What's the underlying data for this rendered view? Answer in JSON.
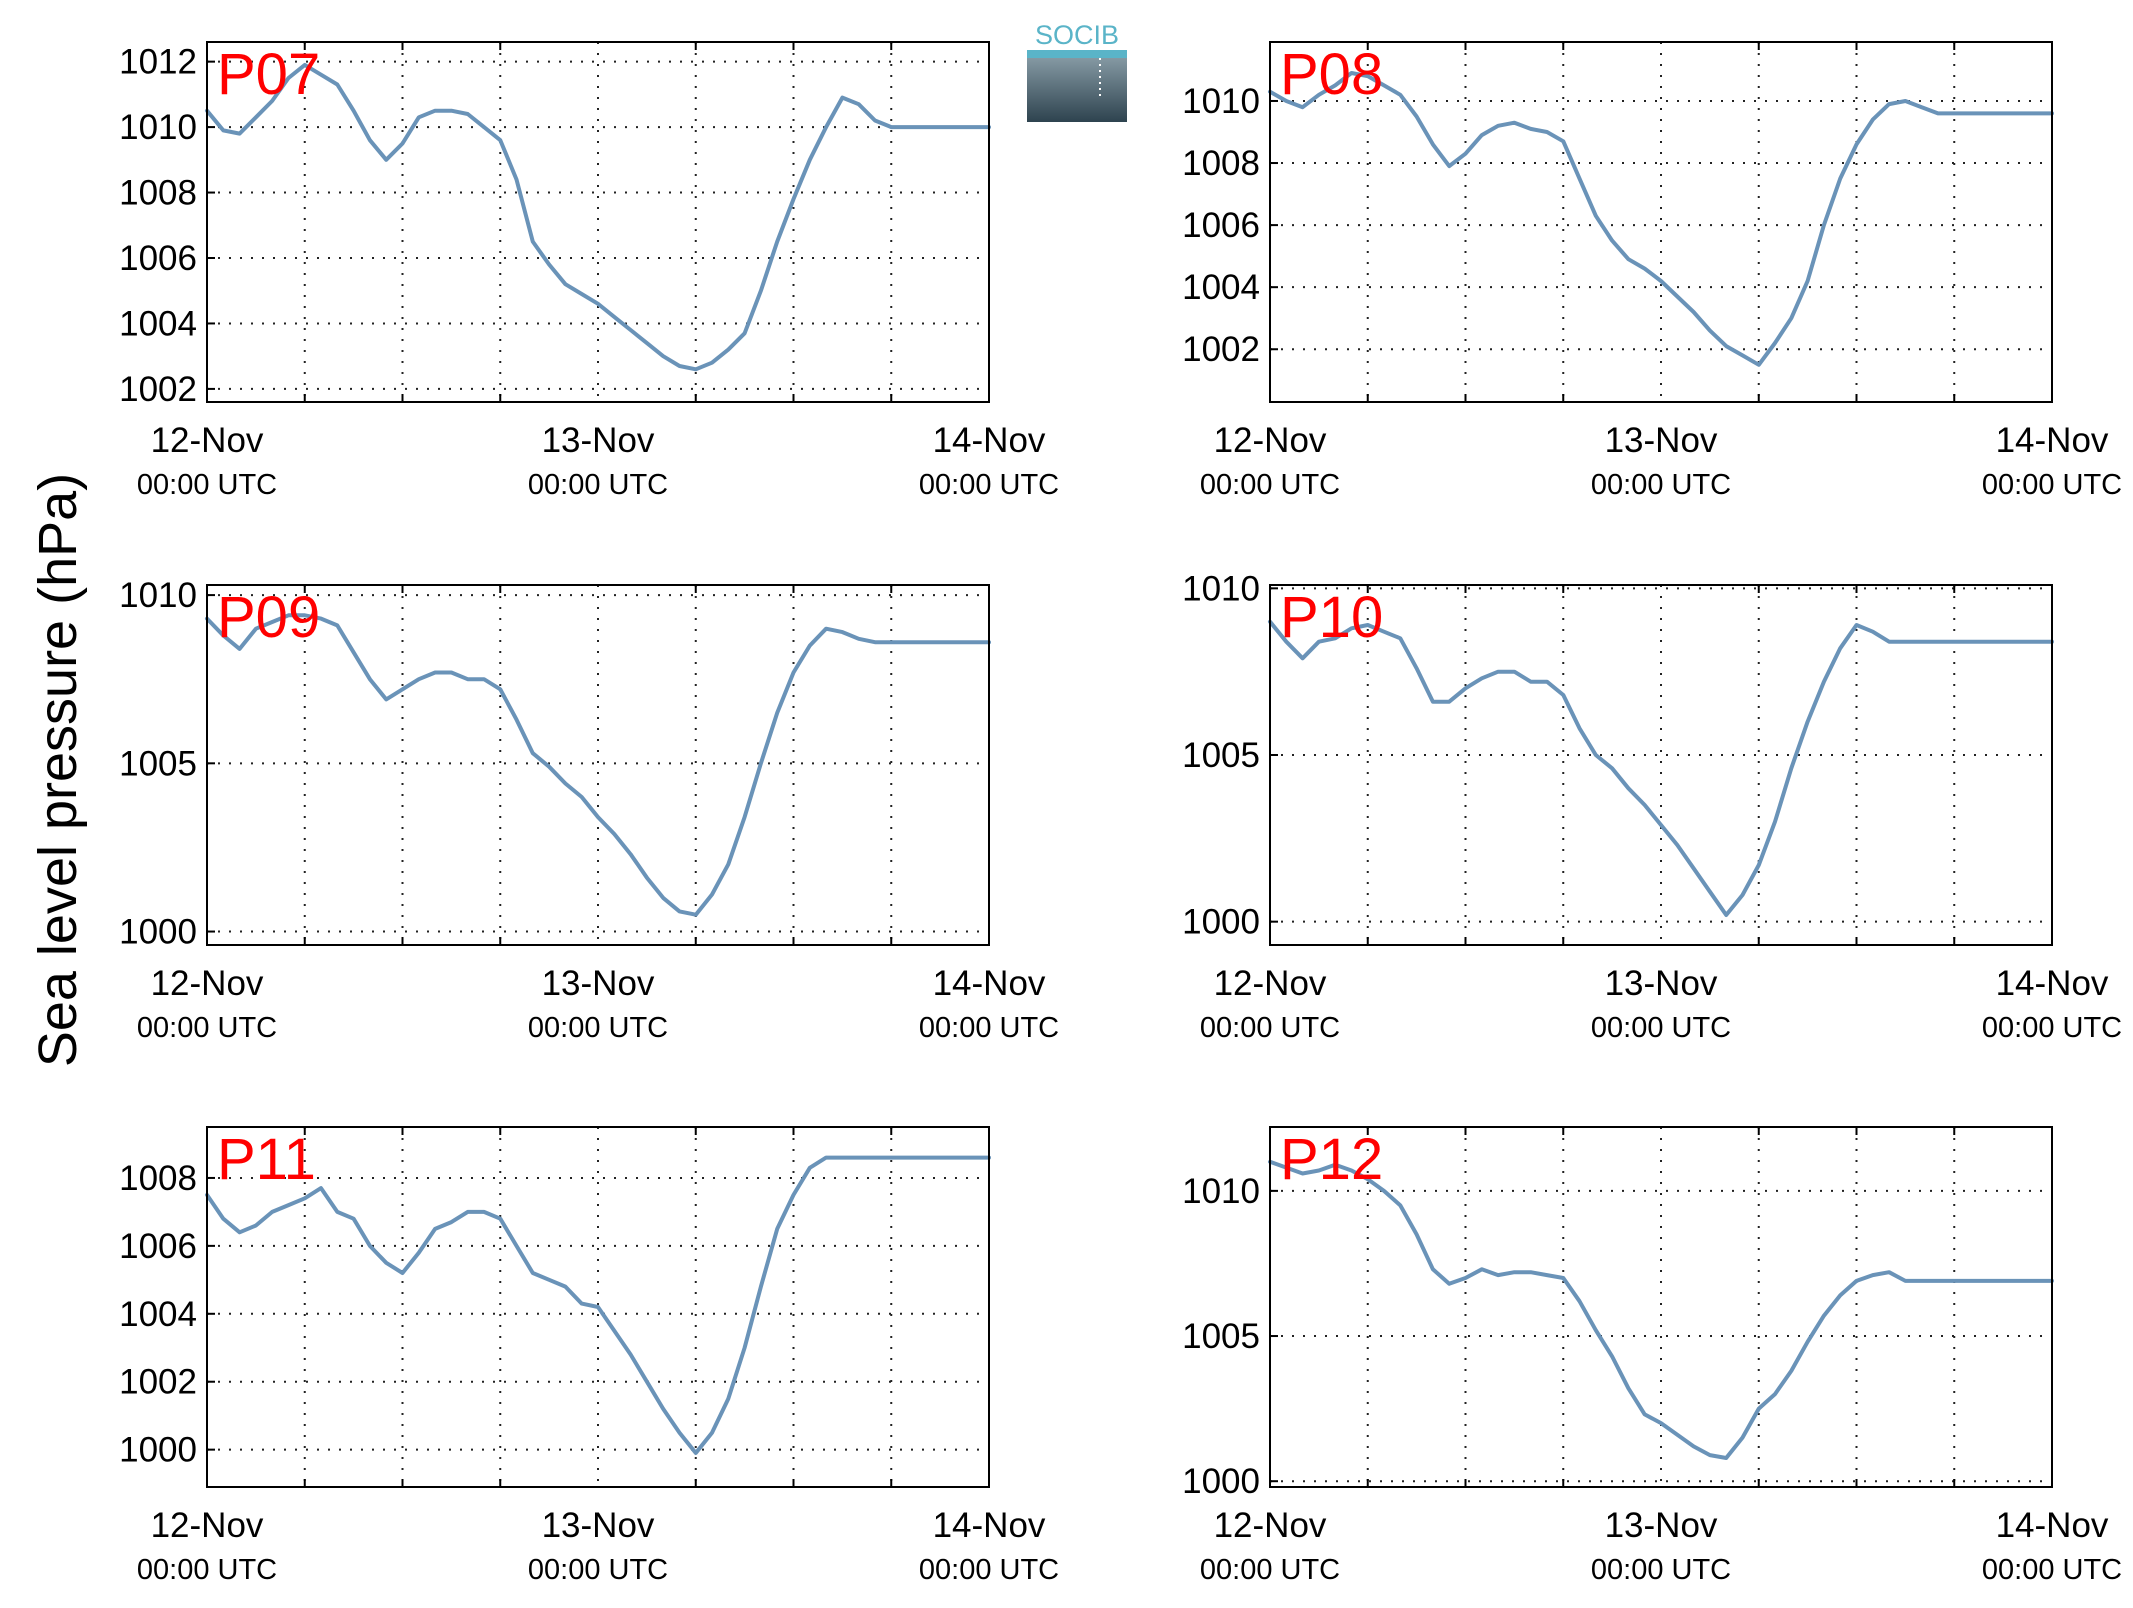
{
  "figure": {
    "ylabel": "Sea level pressure (hPa)",
    "logo_text": "SOCIB",
    "line_color": "#6a93b8",
    "label_color": "#ff0000"
  },
  "chart_data": [
    {
      "type": "line",
      "station": "P07",
      "x_ticks": [
        {
          "hour": 0,
          "date": "12-Nov",
          "time": "00:00 UTC"
        },
        {
          "hour": 24,
          "date": "13-Nov",
          "time": "00:00 UTC"
        },
        {
          "hour": 48,
          "date": "14-Nov",
          "time": "00:00 UTC"
        }
      ],
      "x_minor_hours": [
        6,
        12,
        18,
        30,
        36,
        42
      ],
      "xlim": [
        0,
        48
      ],
      "ylim": [
        1001.6,
        1012.6
      ],
      "yticks": [
        1002,
        1004,
        1006,
        1008,
        1010,
        1012
      ],
      "grid": true,
      "series": [
        {
          "x": [
            0,
            1,
            2,
            3,
            4,
            5,
            6,
            7,
            8,
            9,
            10,
            11,
            12,
            13,
            14,
            15,
            16,
            17,
            18,
            19,
            20,
            21,
            22,
            23,
            24,
            25,
            26,
            27,
            28,
            29,
            30,
            31,
            32,
            33,
            34,
            35,
            36,
            37,
            38,
            39,
            40,
            41,
            42,
            43,
            44,
            45,
            46,
            47,
            48
          ],
          "y": [
            1010.5,
            1009.9,
            1009.8,
            1010.3,
            1010.8,
            1011.5,
            1011.9,
            1011.6,
            1011.3,
            1010.5,
            1009.6,
            1009.0,
            1009.5,
            1010.3,
            1010.5,
            1010.5,
            1010.4,
            1010.0,
            1009.6,
            1008.4,
            1006.5,
            1005.8,
            1005.2,
            1004.9,
            1004.6,
            1004.2,
            1003.8,
            1003.4,
            1003.0,
            1002.7,
            1002.6,
            1002.8,
            1003.2,
            1003.7,
            1005.0,
            1006.5,
            1007.8,
            1009.0,
            1010.0,
            1010.9,
            1010.7,
            1010.2,
            1010.0,
            1010.0,
            1010.0,
            1010.0,
            1010.0,
            1010.0,
            1010.0
          ]
        }
      ]
    },
    {
      "type": "line",
      "station": "P08",
      "x_ticks": [
        {
          "hour": 0,
          "date": "12-Nov",
          "time": "00:00 UTC"
        },
        {
          "hour": 24,
          "date": "13-Nov",
          "time": "00:00 UTC"
        },
        {
          "hour": 48,
          "date": "14-Nov",
          "time": "00:00 UTC"
        }
      ],
      "x_minor_hours": [
        6,
        12,
        18,
        30,
        36,
        42
      ],
      "xlim": [
        0,
        48
      ],
      "ylim": [
        1000.3,
        1011.9
      ],
      "yticks": [
        1002,
        1004,
        1006,
        1008,
        1010
      ],
      "grid": true,
      "series": [
        {
          "x": [
            0,
            1,
            2,
            3,
            4,
            5,
            6,
            7,
            8,
            9,
            10,
            11,
            12,
            13,
            14,
            15,
            16,
            17,
            18,
            19,
            20,
            21,
            22,
            23,
            24,
            25,
            26,
            27,
            28,
            29,
            30,
            31,
            32,
            33,
            34,
            35,
            36,
            37,
            38,
            39,
            40,
            41,
            42,
            43,
            44,
            45,
            46,
            47,
            48
          ],
          "y": [
            1010.3,
            1010.0,
            1009.8,
            1010.2,
            1010.5,
            1010.9,
            1010.8,
            1010.5,
            1010.2,
            1009.5,
            1008.6,
            1007.9,
            1008.3,
            1008.9,
            1009.2,
            1009.3,
            1009.1,
            1009.0,
            1008.7,
            1007.5,
            1006.3,
            1005.5,
            1004.9,
            1004.6,
            1004.2,
            1003.7,
            1003.2,
            1002.6,
            1002.1,
            1001.8,
            1001.5,
            1002.2,
            1003.0,
            1004.2,
            1006.0,
            1007.5,
            1008.6,
            1009.4,
            1009.9,
            1010.0,
            1009.8,
            1009.6,
            1009.6,
            1009.6,
            1009.6,
            1009.6,
            1009.6,
            1009.6,
            1009.6
          ]
        }
      ]
    },
    {
      "type": "line",
      "station": "P09",
      "x_ticks": [
        {
          "hour": 0,
          "date": "12-Nov",
          "time": "00:00 UTC"
        },
        {
          "hour": 24,
          "date": "13-Nov",
          "time": "00:00 UTC"
        },
        {
          "hour": 48,
          "date": "14-Nov",
          "time": "00:00 UTC"
        }
      ],
      "x_minor_hours": [
        6,
        12,
        18,
        30,
        36,
        42
      ],
      "xlim": [
        0,
        48
      ],
      "ylim": [
        999.6,
        1010.3
      ],
      "yticks": [
        1000,
        1005,
        1010
      ],
      "grid": true,
      "series": [
        {
          "x": [
            0,
            1,
            2,
            3,
            4,
            5,
            6,
            7,
            8,
            9,
            10,
            11,
            12,
            13,
            14,
            15,
            16,
            17,
            18,
            19,
            20,
            21,
            22,
            23,
            24,
            25,
            26,
            27,
            28,
            29,
            30,
            31,
            32,
            33,
            34,
            35,
            36,
            37,
            38,
            39,
            40,
            41,
            42,
            43,
            44,
            45,
            46,
            47,
            48
          ],
          "y": [
            1009.3,
            1008.8,
            1008.4,
            1009.0,
            1009.2,
            1009.4,
            1009.4,
            1009.3,
            1009.1,
            1008.3,
            1007.5,
            1006.9,
            1007.2,
            1007.5,
            1007.7,
            1007.7,
            1007.5,
            1007.5,
            1007.2,
            1006.3,
            1005.3,
            1004.9,
            1004.4,
            1004.0,
            1003.4,
            1002.9,
            1002.3,
            1001.6,
            1001.0,
            1000.6,
            1000.5,
            1001.1,
            1002.0,
            1003.4,
            1005.0,
            1006.5,
            1007.7,
            1008.5,
            1009.0,
            1008.9,
            1008.7,
            1008.6,
            1008.6,
            1008.6,
            1008.6,
            1008.6,
            1008.6,
            1008.6,
            1008.6
          ]
        }
      ]
    },
    {
      "type": "line",
      "station": "P10",
      "x_ticks": [
        {
          "hour": 0,
          "date": "12-Nov",
          "time": "00:00 UTC"
        },
        {
          "hour": 24,
          "date": "13-Nov",
          "time": "00:00 UTC"
        },
        {
          "hour": 48,
          "date": "14-Nov",
          "time": "00:00 UTC"
        }
      ],
      "x_minor_hours": [
        6,
        12,
        18,
        30,
        36,
        42
      ],
      "xlim": [
        0,
        48
      ],
      "ylim": [
        999.3,
        1010.1
      ],
      "yticks": [
        1000,
        1005,
        1010
      ],
      "grid": true,
      "series": [
        {
          "x": [
            0,
            1,
            2,
            3,
            4,
            5,
            6,
            7,
            8,
            9,
            10,
            11,
            12,
            13,
            14,
            15,
            16,
            17,
            18,
            19,
            20,
            21,
            22,
            23,
            24,
            25,
            26,
            27,
            28,
            29,
            30,
            31,
            32,
            33,
            34,
            35,
            36,
            37,
            38,
            39,
            40,
            41,
            42,
            43,
            44,
            45,
            46,
            47,
            48
          ],
          "y": [
            1009.0,
            1008.4,
            1007.9,
            1008.4,
            1008.5,
            1008.8,
            1008.9,
            1008.7,
            1008.5,
            1007.6,
            1006.6,
            1006.6,
            1007.0,
            1007.3,
            1007.5,
            1007.5,
            1007.2,
            1007.2,
            1006.8,
            1005.8,
            1005.0,
            1004.6,
            1004.0,
            1003.5,
            1002.9,
            1002.3,
            1001.6,
            1000.9,
            1000.2,
            1000.8,
            1001.7,
            1003.0,
            1004.6,
            1006.0,
            1007.2,
            1008.2,
            1008.9,
            1008.7,
            1008.4,
            1008.4,
            1008.4,
            1008.4,
            1008.4,
            1008.4,
            1008.4,
            1008.4,
            1008.4,
            1008.4,
            1008.4
          ]
        }
      ]
    },
    {
      "type": "line",
      "station": "P11",
      "x_ticks": [
        {
          "hour": 0,
          "date": "12-Nov",
          "time": "00:00 UTC"
        },
        {
          "hour": 24,
          "date": "13-Nov",
          "time": "00:00 UTC"
        },
        {
          "hour": 48,
          "date": "14-Nov",
          "time": "00:00 UTC"
        }
      ],
      "x_minor_hours": [
        6,
        12,
        18,
        30,
        36,
        42
      ],
      "xlim": [
        0,
        48
      ],
      "ylim": [
        998.9,
        1009.5
      ],
      "yticks": [
        1000,
        1002,
        1004,
        1006,
        1008
      ],
      "grid": true,
      "series": [
        {
          "x": [
            0,
            1,
            2,
            3,
            4,
            5,
            6,
            7,
            8,
            9,
            10,
            11,
            12,
            13,
            14,
            15,
            16,
            17,
            18,
            19,
            20,
            21,
            22,
            23,
            24,
            25,
            26,
            27,
            28,
            29,
            30,
            31,
            32,
            33,
            34,
            35,
            36,
            37,
            38,
            39,
            40,
            41,
            42,
            43,
            44,
            45,
            46,
            47,
            48
          ],
          "y": [
            1007.5,
            1006.8,
            1006.4,
            1006.6,
            1007.0,
            1007.2,
            1007.4,
            1007.7,
            1007.0,
            1006.8,
            1006.0,
            1005.5,
            1005.2,
            1005.8,
            1006.5,
            1006.7,
            1007.0,
            1007.0,
            1006.8,
            1006.0,
            1005.2,
            1005.0,
            1004.8,
            1004.3,
            1004.2,
            1003.5,
            1002.8,
            1002.0,
            1001.2,
            1000.5,
            999.9,
            1000.5,
            1001.5,
            1003.0,
            1004.8,
            1006.5,
            1007.5,
            1008.3,
            1008.6,
            1008.6,
            1008.6,
            1008.6,
            1008.6,
            1008.6,
            1008.6,
            1008.6,
            1008.6,
            1008.6,
            1008.6
          ]
        }
      ]
    },
    {
      "type": "line",
      "station": "P12",
      "x_ticks": [
        {
          "hour": 0,
          "date": "12-Nov",
          "time": "00:00 UTC"
        },
        {
          "hour": 24,
          "date": "13-Nov",
          "time": "00:00 UTC"
        },
        {
          "hour": 48,
          "date": "14-Nov",
          "time": "00:00 UTC"
        }
      ],
      "x_minor_hours": [
        6,
        12,
        18,
        30,
        36,
        42
      ],
      "xlim": [
        0,
        48
      ],
      "ylim": [
        999.8,
        1012.2
      ],
      "yticks": [
        1000,
        1005,
        1010
      ],
      "grid": true,
      "series": [
        {
          "x": [
            0,
            1,
            2,
            3,
            4,
            5,
            6,
            7,
            8,
            9,
            10,
            11,
            12,
            13,
            14,
            15,
            16,
            17,
            18,
            19,
            20,
            21,
            22,
            23,
            24,
            25,
            26,
            27,
            28,
            29,
            30,
            31,
            32,
            33,
            34,
            35,
            36,
            37,
            38,
            39,
            40,
            41,
            42,
            43,
            44,
            45,
            46,
            47,
            48
          ],
          "y": [
            1011.0,
            1010.8,
            1010.6,
            1010.7,
            1010.9,
            1010.7,
            1010.4,
            1010.0,
            1009.5,
            1008.5,
            1007.3,
            1006.8,
            1007.0,
            1007.3,
            1007.1,
            1007.2,
            1007.2,
            1007.1,
            1007.0,
            1006.2,
            1005.2,
            1004.3,
            1003.2,
            1002.3,
            1002.0,
            1001.6,
            1001.2,
            1000.9,
            1000.8,
            1001.5,
            1002.5,
            1003.0,
            1003.8,
            1004.8,
            1005.7,
            1006.4,
            1006.9,
            1007.1,
            1007.2,
            1006.9,
            1006.9,
            1006.9,
            1006.9,
            1006.9,
            1006.9,
            1006.9,
            1006.9,
            1006.9,
            1006.9
          ]
        }
      ]
    }
  ]
}
